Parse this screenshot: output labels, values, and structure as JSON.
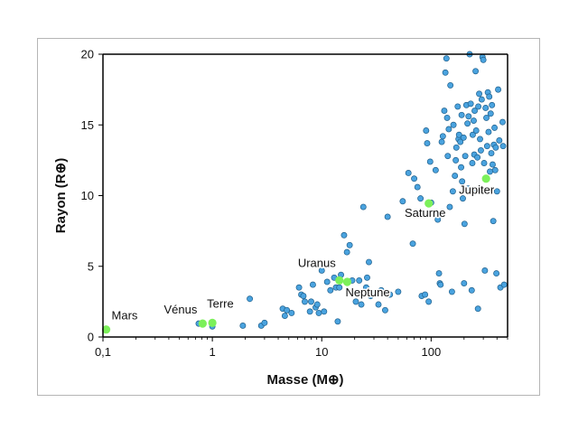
{
  "chart_data": {
    "type": "scatter",
    "title": "",
    "xlabel": "Masse (M⊕)",
    "ylabel": "Rayon (R⊕)",
    "xscale": "log",
    "xlim": [
      0.1,
      500
    ],
    "ylim": [
      0,
      20
    ],
    "x_ticks": [
      0.1,
      1,
      10,
      100
    ],
    "x_tick_labels": [
      "0,1",
      "1",
      "10",
      "100"
    ],
    "y_ticks": [
      0,
      5,
      10,
      15,
      20
    ],
    "y_tick_labels": [
      "0",
      "5",
      "10",
      "15",
      "20"
    ],
    "grid": false,
    "colors": {
      "exoplanet": "#4aa3df",
      "exoplanet_edge": "#1f5f8b",
      "solar_system": "#7cf05a",
      "axis": "#000000"
    },
    "series": [
      {
        "role": "exoplanets",
        "points": [
          [
            2.2,
            2.7
          ],
          [
            2.8,
            0.8
          ],
          [
            3.0,
            1.0
          ],
          [
            1.9,
            0.8
          ],
          [
            4.4,
            2.0
          ],
          [
            4.8,
            1.9
          ],
          [
            4.6,
            1.5
          ],
          [
            5.3,
            1.7
          ],
          [
            6.2,
            3.5
          ],
          [
            6.5,
            3.0
          ],
          [
            6.8,
            2.9
          ],
          [
            7.0,
            2.5
          ],
          [
            7.8,
            1.8
          ],
          [
            8.0,
            2.5
          ],
          [
            8.3,
            3.7
          ],
          [
            8.8,
            2.1
          ],
          [
            9.1,
            2.3
          ],
          [
            9.4,
            1.7
          ],
          [
            10.0,
            4.7
          ],
          [
            10.5,
            1.8
          ],
          [
            11.2,
            3.9
          ],
          [
            12.0,
            3.3
          ],
          [
            13.0,
            4.2
          ],
          [
            13.5,
            3.5
          ],
          [
            14.0,
            1.1
          ],
          [
            14.5,
            3.5
          ],
          [
            15.0,
            4.4
          ],
          [
            16.0,
            7.2
          ],
          [
            17.0,
            6.0
          ],
          [
            18.0,
            6.5
          ],
          [
            19.0,
            4.0
          ],
          [
            20.5,
            2.5
          ],
          [
            22.0,
            4.0
          ],
          [
            23.0,
            2.3
          ],
          [
            24.0,
            9.2
          ],
          [
            25.5,
            3.5
          ],
          [
            26.0,
            4.2
          ],
          [
            27.0,
            5.3
          ],
          [
            28.0,
            2.9
          ],
          [
            30.0,
            3.1
          ],
          [
            33.0,
            2.3
          ],
          [
            35.0,
            3.3
          ],
          [
            38.0,
            1.9
          ],
          [
            40.0,
            8.5
          ],
          [
            42.0,
            3.0
          ],
          [
            50.0,
            3.2
          ],
          [
            55.0,
            9.6
          ],
          [
            62.0,
            11.6
          ],
          [
            68.0,
            6.6
          ],
          [
            70.0,
            11.2
          ],
          [
            72.0,
            8.8
          ],
          [
            75.0,
            10.6
          ],
          [
            80.0,
            9.8
          ],
          [
            82.0,
            2.9
          ],
          [
            88.0,
            3.0
          ],
          [
            90.0,
            14.6
          ],
          [
            92.0,
            13.7
          ],
          [
            95.0,
            2.5
          ],
          [
            98.0,
            12.4
          ],
          [
            100.0,
            9.5
          ],
          [
            105.0,
            8.8
          ],
          [
            110.0,
            11.8
          ],
          [
            115.0,
            8.3
          ],
          [
            118.0,
            4.5
          ],
          [
            120.0,
            3.8
          ],
          [
            122.0,
            3.7
          ],
          [
            125.0,
            13.8
          ],
          [
            128.0,
            14.2
          ],
          [
            132.0,
            16.0
          ],
          [
            135.0,
            18.7
          ],
          [
            138.0,
            19.7
          ],
          [
            140.0,
            15.5
          ],
          [
            142.0,
            12.8
          ],
          [
            145.0,
            14.7
          ],
          [
            148.0,
            9.2
          ],
          [
            150.0,
            17.8
          ],
          [
            155.0,
            3.2
          ],
          [
            158.0,
            10.3
          ],
          [
            160.0,
            15.0
          ],
          [
            165.0,
            11.4
          ],
          [
            168.0,
            12.5
          ],
          [
            170.0,
            13.4
          ],
          [
            175.0,
            16.3
          ],
          [
            178.0,
            14.0
          ],
          [
            180.0,
            14.3
          ],
          [
            185.0,
            13.8
          ],
          [
            188.0,
            12.0
          ],
          [
            190.0,
            15.7
          ],
          [
            192.0,
            11.0
          ],
          [
            195.0,
            9.8
          ],
          [
            198.0,
            14.1
          ],
          [
            200.0,
            3.8
          ],
          [
            202.0,
            8.0
          ],
          [
            205.0,
            12.8
          ],
          [
            210.0,
            16.4
          ],
          [
            215.0,
            15.1
          ],
          [
            218.0,
            10.5
          ],
          [
            220.0,
            15.6
          ],
          [
            225.0,
            20.0
          ],
          [
            230.0,
            16.5
          ],
          [
            235.0,
            3.3
          ],
          [
            238.0,
            12.3
          ],
          [
            240.0,
            14.3
          ],
          [
            245.0,
            15.3
          ],
          [
            248.0,
            12.9
          ],
          [
            250.0,
            16.0
          ],
          [
            255.0,
            18.8
          ],
          [
            258.0,
            14.6
          ],
          [
            262.0,
            10.4
          ],
          [
            265.0,
            12.7
          ],
          [
            268.0,
            2.0
          ],
          [
            270.0,
            16.3
          ],
          [
            275.0,
            17.2
          ],
          [
            280.0,
            14.0
          ],
          [
            285.0,
            13.2
          ],
          [
            290.0,
            16.8
          ],
          [
            295.0,
            19.8
          ],
          [
            300.0,
            19.6
          ],
          [
            305.0,
            12.3
          ],
          [
            310.0,
            4.7
          ],
          [
            315.0,
            16.2
          ],
          [
            320.0,
            15.5
          ],
          [
            325.0,
            13.5
          ],
          [
            330.0,
            17.3
          ],
          [
            335.0,
            14.5
          ],
          [
            340.0,
            17.0
          ],
          [
            345.0,
            11.7
          ],
          [
            350.0,
            15.8
          ],
          [
            355.0,
            13.0
          ],
          [
            360.0,
            16.4
          ],
          [
            365.0,
            12.2
          ],
          [
            370.0,
            8.2
          ],
          [
            375.0,
            13.6
          ],
          [
            380.0,
            14.8
          ],
          [
            385.0,
            11.8
          ],
          [
            390.0,
            13.4
          ],
          [
            395.0,
            4.5
          ],
          [
            400.0,
            10.3
          ],
          [
            410.0,
            17.5
          ],
          [
            420.0,
            13.9
          ],
          [
            430.0,
            3.5
          ],
          [
            450.0,
            15.2
          ],
          [
            455.0,
            13.5
          ],
          [
            465.0,
            3.7
          ],
          [
            1.0,
            0.75
          ],
          [
            0.75,
            0.95
          ]
        ]
      },
      {
        "role": "solar_system",
        "points": [
          {
            "name": "Mars",
            "x": 0.107,
            "y": 0.53
          },
          {
            "name": "Vénus",
            "x": 0.815,
            "y": 0.95
          },
          {
            "name": "Terre",
            "x": 1.0,
            "y": 1.0
          },
          {
            "name": "Uranus",
            "x": 14.5,
            "y": 4.0
          },
          {
            "name": "Neptune",
            "x": 17.1,
            "y": 3.9
          },
          {
            "name": "Saturne",
            "x": 95.2,
            "y": 9.45
          },
          {
            "name": "Jupiter",
            "x": 317.8,
            "y": 11.2
          }
        ]
      }
    ]
  }
}
